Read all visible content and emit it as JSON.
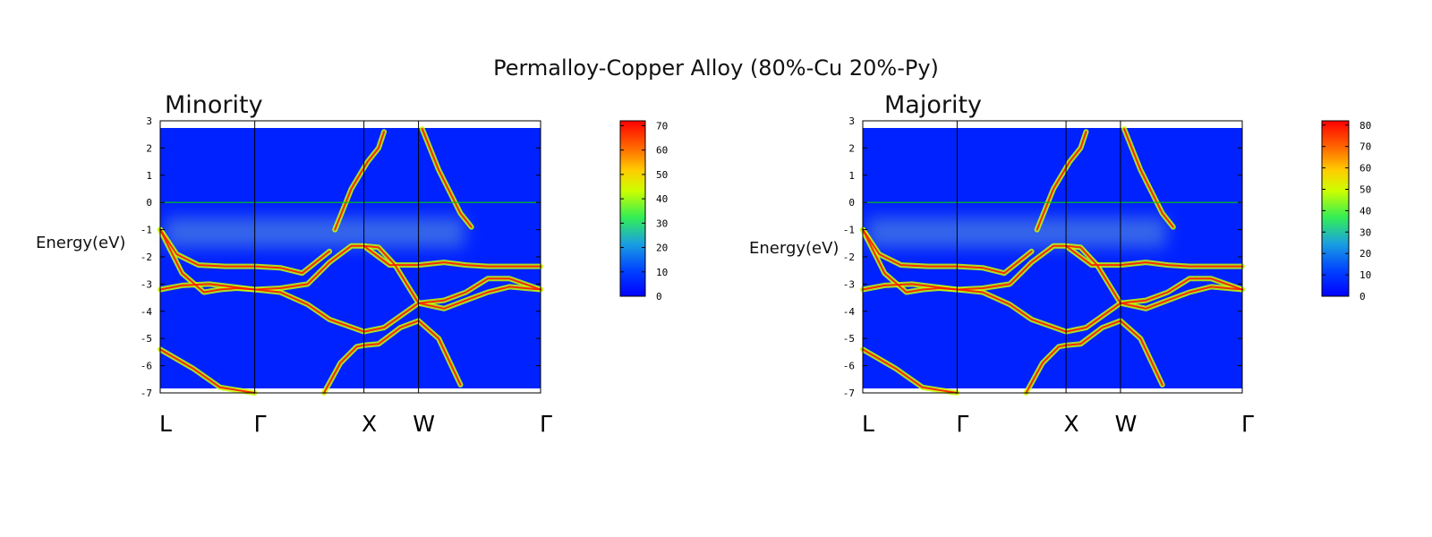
{
  "title": "Permalloy-Copper Alloy (80%-Cu 20%-Py)",
  "colors": {
    "background": "#0022ff",
    "fermi_line": "#00cc00",
    "band_core": "#ff1a00",
    "band_glow": "#c8ff00"
  },
  "chart_data": [
    {
      "type": "heatmap",
      "panel_title": "Minority",
      "ylabel": "Energy(eV)",
      "xlabel": "",
      "ylim": [
        -7,
        3
      ],
      "yticks": [
        "3",
        "2",
        "1",
        "0",
        "-1",
        "-2",
        "-3",
        "-4",
        "-5",
        "-6",
        "-7"
      ],
      "k_labels": [
        "L",
        "Γ",
        "X",
        "W",
        "Γ"
      ],
      "k_positions": [
        0,
        0.866,
        1.866,
        2.366,
        3.484
      ],
      "fermi_level": 0,
      "colorbar": {
        "min": 0,
        "max": 72,
        "ticks": [
          "70",
          "60",
          "50",
          "40",
          "30",
          "20",
          "10",
          "0"
        ]
      },
      "bands": [
        {
          "name": "",
          "x": [
            0,
            0.3,
            0.55,
            0.866
          ],
          "y": [
            -5.4,
            -6.1,
            -6.8,
            -7.0
          ]
        },
        {
          "name": "",
          "x": [
            0,
            0.2,
            0.45,
            0.866,
            1.1,
            1.35,
            1.55,
            1.75,
            1.866,
            2.0,
            2.15,
            2.366
          ],
          "y": [
            -3.2,
            -3.05,
            -3.0,
            -3.2,
            -3.15,
            -3.0,
            -2.2,
            -1.6,
            -1.6,
            -1.65,
            -2.3,
            -3.7
          ]
        },
        {
          "name": "",
          "x": [
            0,
            0.15,
            0.35,
            0.6,
            0.866,
            1.1,
            1.3,
            1.55
          ],
          "y": [
            -1.0,
            -1.9,
            -2.3,
            -2.35,
            -2.35,
            -2.4,
            -2.6,
            -1.8
          ]
        },
        {
          "name": "",
          "x": [
            0,
            0.2,
            0.4,
            0.55,
            0.7,
            0.866
          ],
          "y": [
            -1.0,
            -2.6,
            -3.3,
            -3.2,
            -3.15,
            -3.2
          ]
        },
        {
          "name": "",
          "x": [
            0.866,
            1.1,
            1.35,
            1.55,
            1.866,
            2.05,
            2.366
          ],
          "y": [
            -3.2,
            -3.3,
            -3.75,
            -4.3,
            -4.75,
            -4.6,
            -3.7
          ]
        },
        {
          "name": "",
          "x": [
            1.5,
            1.65,
            1.8,
            1.866,
            2.0,
            2.2,
            2.366,
            2.55,
            2.75
          ],
          "y": [
            -7.0,
            -5.9,
            -5.3,
            -5.25,
            -5.2,
            -4.6,
            -4.35,
            -5.0,
            -6.7
          ]
        },
        {
          "name": "",
          "x": [
            1.6,
            1.75,
            1.9,
            2.0,
            2.05
          ],
          "y": [
            -1.0,
            0.5,
            1.5,
            2.0,
            2.6
          ]
        },
        {
          "name": "",
          "x": [
            2.4,
            2.55,
            2.75,
            2.85
          ],
          "y": [
            2.7,
            1.2,
            -0.4,
            -0.9
          ]
        },
        {
          "name": "",
          "x": [
            1.866,
            2.1,
            2.366,
            2.6,
            2.8,
            3.0,
            3.484
          ],
          "y": [
            -1.6,
            -2.3,
            -2.3,
            -2.2,
            -2.3,
            -2.35,
            -2.35
          ]
        },
        {
          "name": "",
          "x": [
            2.366,
            2.6,
            2.8,
            3.0,
            3.2,
            3.484
          ],
          "y": [
            -3.7,
            -3.6,
            -3.3,
            -2.8,
            -2.8,
            -3.2
          ]
        },
        {
          "name": "",
          "x": [
            2.366,
            2.6,
            2.8,
            3.0,
            3.2,
            3.484
          ],
          "y": [
            -3.7,
            -3.9,
            -3.6,
            -3.3,
            -3.1,
            -3.2
          ]
        }
      ]
    },
    {
      "type": "heatmap",
      "panel_title": "Majority",
      "ylabel": "Energy(eV)",
      "xlabel": "",
      "ylim": [
        -7,
        3
      ],
      "yticks": [
        "3",
        "2",
        "1",
        "0",
        "-1",
        "-2",
        "-3",
        "-4",
        "-5",
        "-6",
        "-7"
      ],
      "k_labels": [
        "L",
        "Γ",
        "X",
        "W",
        "Γ"
      ],
      "k_positions": [
        0,
        0.866,
        1.866,
        2.366,
        3.484
      ],
      "fermi_level": 0,
      "colorbar": {
        "min": 0,
        "max": 82,
        "ticks": [
          "80",
          "70",
          "60",
          "50",
          "40",
          "30",
          "20",
          "10",
          "0"
        ]
      },
      "bands": [
        {
          "name": "",
          "x": [
            0,
            0.3,
            0.55,
            0.866
          ],
          "y": [
            -5.4,
            -6.1,
            -6.8,
            -7.0
          ]
        },
        {
          "name": "",
          "x": [
            0,
            0.2,
            0.45,
            0.866,
            1.1,
            1.35,
            1.55,
            1.75,
            1.866,
            2.0,
            2.15,
            2.366
          ],
          "y": [
            -3.2,
            -3.05,
            -3.0,
            -3.2,
            -3.15,
            -3.0,
            -2.2,
            -1.6,
            -1.6,
            -1.65,
            -2.3,
            -3.7
          ]
        },
        {
          "name": "",
          "x": [
            0,
            0.15,
            0.35,
            0.6,
            0.866,
            1.1,
            1.3,
            1.55
          ],
          "y": [
            -1.0,
            -1.9,
            -2.3,
            -2.35,
            -2.35,
            -2.4,
            -2.6,
            -1.8
          ]
        },
        {
          "name": "",
          "x": [
            0,
            0.2,
            0.4,
            0.55,
            0.7,
            0.866
          ],
          "y": [
            -1.0,
            -2.6,
            -3.3,
            -3.2,
            -3.15,
            -3.2
          ]
        },
        {
          "name": "",
          "x": [
            0.866,
            1.1,
            1.35,
            1.55,
            1.866,
            2.05,
            2.366
          ],
          "y": [
            -3.2,
            -3.3,
            -3.75,
            -4.3,
            -4.75,
            -4.6,
            -3.7
          ]
        },
        {
          "name": "",
          "x": [
            1.5,
            1.65,
            1.8,
            1.866,
            2.0,
            2.2,
            2.366,
            2.55,
            2.75
          ],
          "y": [
            -7.0,
            -5.9,
            -5.3,
            -5.25,
            -5.2,
            -4.6,
            -4.35,
            -5.0,
            -6.7
          ]
        },
        {
          "name": "",
          "x": [
            1.6,
            1.75,
            1.9,
            2.0,
            2.05
          ],
          "y": [
            -1.0,
            0.5,
            1.5,
            2.0,
            2.6
          ]
        },
        {
          "name": "",
          "x": [
            2.4,
            2.55,
            2.75,
            2.85
          ],
          "y": [
            2.7,
            1.2,
            -0.4,
            -0.9
          ]
        },
        {
          "name": "",
          "x": [
            1.866,
            2.1,
            2.366,
            2.6,
            2.8,
            3.0,
            3.484
          ],
          "y": [
            -1.6,
            -2.3,
            -2.3,
            -2.2,
            -2.3,
            -2.35,
            -2.35
          ]
        },
        {
          "name": "",
          "x": [
            2.366,
            2.6,
            2.8,
            3.0,
            3.2,
            3.484
          ],
          "y": [
            -3.7,
            -3.6,
            -3.3,
            -2.8,
            -2.8,
            -3.2
          ]
        },
        {
          "name": "",
          "x": [
            2.366,
            2.6,
            2.8,
            3.0,
            3.2,
            3.484
          ],
          "y": [
            -3.7,
            -3.9,
            -3.6,
            -3.3,
            -3.1,
            -3.2
          ]
        }
      ]
    }
  ]
}
